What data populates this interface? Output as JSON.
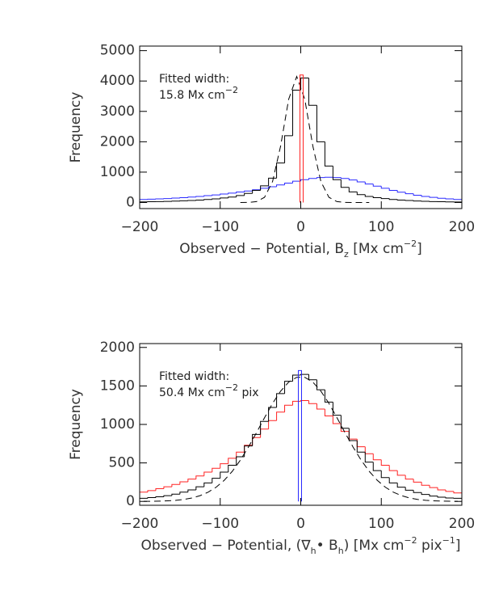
{
  "chart_data": [
    {
      "type": "histogram",
      "annotation": [
        "Fitted width:",
        [
          {
            "text": "15.8 Mx cm"
          },
          {
            "text": "−2",
            "script": "sup"
          }
        ]
      ],
      "xlabel": [
        {
          "text": "Observed − Potential, B"
        },
        {
          "text": "z",
          "script": "sub"
        },
        {
          "text": " [Mx cm"
        },
        {
          "text": "−2",
          "script": "sup"
        },
        {
          "text": "]"
        }
      ],
      "ylabel": "Frequency",
      "xlim": [
        -200,
        200
      ],
      "xticks": [
        {
          "value": -200,
          "label": "−200"
        },
        {
          "value": -100,
          "label": "−100"
        },
        0,
        100,
        200
      ],
      "ylim": [
        -200,
        5150
      ],
      "yticks": [
        0,
        1000,
        2000,
        3000,
        4000,
        5000
      ],
      "bins": [
        -200,
        -190,
        -180,
        -170,
        -160,
        -150,
        -140,
        -130,
        -120,
        -110,
        -100,
        -90,
        -80,
        -70,
        -60,
        -50,
        -40,
        -30,
        -20,
        -10,
        0,
        10,
        20,
        30,
        40,
        50,
        60,
        70,
        80,
        90,
        100,
        110,
        120,
        130,
        140,
        150,
        160,
        170,
        180,
        190,
        200
      ],
      "series": [
        {
          "color": "#2a2aff",
          "values": [
            100,
            110,
            120,
            130,
            145,
            160,
            180,
            200,
            225,
            250,
            280,
            310,
            345,
            380,
            420,
            470,
            520,
            580,
            640,
            700,
            750,
            790,
            820,
            830,
            820,
            790,
            740,
            680,
            610,
            540,
            470,
            400,
            340,
            290,
            240,
            200,
            170,
            140,
            120,
            100
          ]
        },
        {
          "color": "#000000",
          "values": [
            20,
            25,
            30,
            35,
            45,
            55,
            65,
            80,
            100,
            120,
            150,
            180,
            230,
            300,
            400,
            550,
            800,
            1300,
            2200,
            3700,
            4100,
            3200,
            2000,
            1200,
            750,
            500,
            350,
            260,
            200,
            160,
            130,
            100,
            80,
            65,
            50,
            40,
            30,
            25,
            20,
            15
          ]
        },
        {
          "color": "#000000",
          "dashed": true,
          "x": [
            -75,
            -65,
            -55,
            -45,
            -35,
            -25,
            -15,
            -5,
            5,
            15,
            25,
            35,
            45,
            55,
            65,
            75,
            85
          ],
          "values": [
            0,
            3,
            28,
            170,
            690,
            1860,
            3400,
            4150,
            3400,
            1860,
            690,
            170,
            28,
            3,
            0,
            0,
            0
          ]
        },
        {
          "color": "#ff2222",
          "bins": [
            -1,
            3
          ],
          "values": [
            4200
          ]
        }
      ]
    },
    {
      "type": "histogram",
      "annotation": [
        "Fitted width:",
        [
          {
            "text": "50.4 Mx cm"
          },
          {
            "text": "−2",
            "script": "sup"
          },
          {
            "text": " pix"
          }
        ]
      ],
      "xlabel": [
        {
          "text": "Observed − Potential, (∇"
        },
        {
          "text": "h",
          "script": "sub"
        },
        {
          "text": "• B"
        },
        {
          "text": "h",
          "script": "sub"
        },
        {
          "text": ") [Mx cm"
        },
        {
          "text": "−2",
          "script": "sup"
        },
        {
          "text": " pix"
        },
        {
          "text": "−1",
          "script": "sup"
        },
        {
          "text": "]"
        }
      ],
      "ylabel": "Frequency",
      "xlim": [
        -200,
        200
      ],
      "xticks": [
        {
          "value": -200,
          "label": "−200"
        },
        {
          "value": -100,
          "label": "−100"
        },
        0,
        100,
        200
      ],
      "ylim": [
        -50,
        2050
      ],
      "yticks": [
        0,
        500,
        1000,
        1500,
        2000
      ],
      "bins": [
        -200,
        -190,
        -180,
        -170,
        -160,
        -150,
        -140,
        -130,
        -120,
        -110,
        -100,
        -90,
        -80,
        -70,
        -60,
        -50,
        -40,
        -30,
        -20,
        -10,
        0,
        10,
        20,
        30,
        40,
        50,
        60,
        70,
        80,
        90,
        100,
        110,
        120,
        130,
        140,
        150,
        160,
        170,
        180,
        190,
        200
      ],
      "series": [
        {
          "color": "#ff2222",
          "values": [
            120,
            140,
            165,
            190,
            220,
            255,
            290,
            330,
            380,
            430,
            490,
            560,
            640,
            730,
            830,
            940,
            1050,
            1160,
            1250,
            1300,
            1310,
            1270,
            1200,
            1110,
            1010,
            910,
            810,
            710,
            620,
            540,
            470,
            400,
            340,
            290,
            250,
            210,
            180,
            150,
            130,
            110
          ]
        },
        {
          "color": "#000000",
          "values": [
            40,
            50,
            60,
            75,
            95,
            120,
            150,
            190,
            240,
            300,
            380,
            470,
            580,
            720,
            870,
            1040,
            1220,
            1400,
            1560,
            1640,
            1650,
            1580,
            1450,
            1290,
            1120,
            950,
            790,
            640,
            510,
            400,
            310,
            240,
            185,
            145,
            115,
            90,
            70,
            55,
            45,
            40
          ]
        },
        {
          "color": "#000000",
          "dashed": true,
          "x": [
            -195,
            -185,
            -175,
            -165,
            -155,
            -145,
            -135,
            -125,
            -115,
            -105,
            -95,
            -85,
            -75,
            -65,
            -55,
            -45,
            -35,
            -25,
            -15,
            -5,
            5,
            15,
            25,
            35,
            45,
            55,
            65,
            75,
            85,
            95,
            105,
            115,
            125,
            135,
            145,
            155,
            165,
            175,
            185,
            195
          ],
          "values": [
            1,
            2,
            4,
            8,
            14,
            26,
            45,
            75,
            120,
            185,
            274,
            391,
            536,
            705,
            892,
            1087,
            1273,
            1432,
            1550,
            1612,
            1612,
            1550,
            1432,
            1273,
            1087,
            892,
            705,
            536,
            391,
            274,
            185,
            120,
            75,
            45,
            26,
            14,
            8,
            4,
            2,
            1
          ]
        },
        {
          "color": "#2a2aff",
          "bins": [
            -3,
            1
          ],
          "values": [
            1700
          ]
        }
      ]
    }
  ]
}
